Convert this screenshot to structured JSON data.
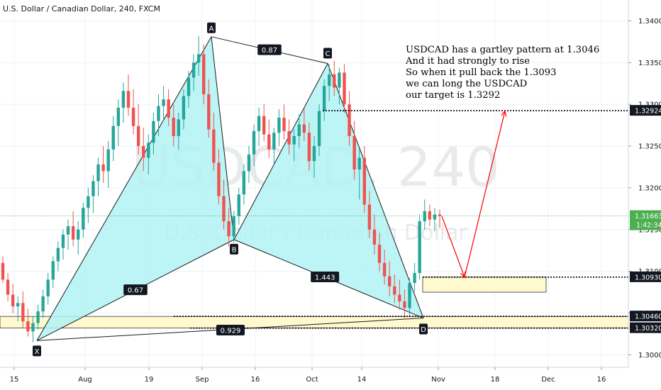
{
  "header": {
    "title": "U.S. Dollar / Canadian Dollar, 240, FXCM"
  },
  "watermark": {
    "symbol": "USDCAD, 240",
    "description": "U.S. Dollar / Canadian Dollar"
  },
  "annotation": {
    "lines": [
      "USDCAD has a gartley pattern at 1.3046",
      "And it had strongly to rise",
      "So when it pull back the 1.3093",
      "we can long the USDCAD",
      "our target is 1.3292"
    ]
  },
  "colors": {
    "pattern_fill": "#b2f2f5",
    "zone_fill": "#fff9d0",
    "candle_up": "#26a69a",
    "candle_down": "#ef5350",
    "arrow": "#ff0000",
    "current_price_line": "#4caf50"
  },
  "chart_data": {
    "type": "candlestick",
    "symbol": "USDCAD",
    "timeframe": "240",
    "x_tick_labels": [
      "15",
      "Aug",
      "19",
      "Sep",
      "16",
      "Oct",
      "14",
      "Nov",
      "18",
      "Dec",
      "16"
    ],
    "y_tick_labels": [
      "1.30000",
      "1.30500",
      "1.31000",
      "1.31500",
      "1.32000",
      "1.32500",
      "1.33000",
      "1.33500",
      "1.34000"
    ],
    "ylim": [
      1.2985,
      1.3425
    ],
    "y_ticks": [
      1.3,
      1.305,
      1.31,
      1.315,
      1.32,
      1.325,
      1.33,
      1.335,
      1.34
    ],
    "current_price": {
      "value": 1.31663,
      "label": "1.31663",
      "countdown": "1:42:34"
    },
    "price_levels": [
      {
        "value": 1.32924,
        "label": "1.32924"
      },
      {
        "value": 1.3093,
        "label": "1.30930"
      },
      {
        "value": 1.3046,
        "label": "1.30460"
      },
      {
        "value": 1.3032,
        "label": "1.30320"
      }
    ],
    "harmonic_points": [
      {
        "label": "X",
        "price": 1.3017
      },
      {
        "label": "A",
        "price": 1.3381
      },
      {
        "label": "B",
        "price": 1.3138
      },
      {
        "label": "C",
        "price": 1.3349
      },
      {
        "label": "D",
        "price": 1.3044
      }
    ],
    "ratios": [
      {
        "label": "0.67",
        "between": "X-B"
      },
      {
        "label": "0.87",
        "between": "A-C"
      },
      {
        "label": "1.443",
        "between": "B-D"
      },
      {
        "label": "0.929",
        "between": "X-D"
      }
    ],
    "zones": [
      {
        "name": "entry-zone",
        "from": 1.3075,
        "to": 1.3093
      },
      {
        "name": "support-zone",
        "from": 1.3032,
        "to": 1.3046
      }
    ],
    "projection": [
      {
        "price": 1.3166
      },
      {
        "price": 1.3093
      },
      {
        "price": 1.3292
      }
    ],
    "candles": [
      [
        1.311,
        1.3118,
        1.3086,
        1.309
      ],
      [
        1.309,
        1.3098,
        1.3064,
        1.3072
      ],
      [
        1.3072,
        1.3085,
        1.305,
        1.3058
      ],
      [
        1.3058,
        1.307,
        1.304,
        1.3062
      ],
      [
        1.3062,
        1.3076,
        1.3032,
        1.304
      ],
      [
        1.304,
        1.3055,
        1.3022,
        1.3028
      ],
      [
        1.3028,
        1.3046,
        1.3015,
        1.3038
      ],
      [
        1.3038,
        1.306,
        1.303,
        1.3052
      ],
      [
        1.3052,
        1.3078,
        1.3044,
        1.307
      ],
      [
        1.307,
        1.3098,
        1.306,
        1.309
      ],
      [
        1.309,
        1.3118,
        1.308,
        1.3112
      ],
      [
        1.3112,
        1.3136,
        1.31,
        1.3128
      ],
      [
        1.3128,
        1.315,
        1.3114,
        1.3144
      ],
      [
        1.3144,
        1.3162,
        1.3126,
        1.3154
      ],
      [
        1.3154,
        1.3172,
        1.313,
        1.3138
      ],
      [
        1.3138,
        1.316,
        1.312,
        1.315
      ],
      [
        1.315,
        1.3182,
        1.314,
        1.3176
      ],
      [
        1.3176,
        1.32,
        1.3158,
        1.319
      ],
      [
        1.319,
        1.3215,
        1.317,
        1.3208
      ],
      [
        1.3208,
        1.3236,
        1.319,
        1.3228
      ],
      [
        1.3228,
        1.325,
        1.3206,
        1.322
      ],
      [
        1.322,
        1.3256,
        1.32,
        1.3246
      ],
      [
        1.3246,
        1.3286,
        1.3232,
        1.3274
      ],
      [
        1.3274,
        1.3306,
        1.325,
        1.3296
      ],
      [
        1.3296,
        1.3326,
        1.3278,
        1.3316
      ],
      [
        1.3316,
        1.3336,
        1.3286,
        1.3296
      ],
      [
        1.3296,
        1.3318,
        1.3264,
        1.3274
      ],
      [
        1.3274,
        1.33,
        1.324,
        1.325
      ],
      [
        1.325,
        1.3272,
        1.322,
        1.3236
      ],
      [
        1.3236,
        1.3264,
        1.3216,
        1.3254
      ],
      [
        1.3254,
        1.329,
        1.324,
        1.328
      ],
      [
        1.328,
        1.3312,
        1.3262,
        1.3298
      ],
      [
        1.3298,
        1.3322,
        1.328,
        1.3306
      ],
      [
        1.3306,
        1.3318,
        1.3274,
        1.3284
      ],
      [
        1.3284,
        1.33,
        1.325,
        1.3262
      ],
      [
        1.3262,
        1.329,
        1.3246,
        1.3282
      ],
      [
        1.3282,
        1.3318,
        1.327,
        1.331
      ],
      [
        1.331,
        1.334,
        1.3296,
        1.3332
      ],
      [
        1.3332,
        1.336,
        1.3316,
        1.335
      ],
      [
        1.335,
        1.3382,
        1.3334,
        1.336
      ],
      [
        1.336,
        1.3372,
        1.33,
        1.3312
      ],
      [
        1.3312,
        1.333,
        1.326,
        1.327
      ],
      [
        1.327,
        1.329,
        1.322,
        1.323
      ],
      [
        1.323,
        1.3246,
        1.318,
        1.319
      ],
      [
        1.319,
        1.321,
        1.315,
        1.316
      ],
      [
        1.316,
        1.3176,
        1.313,
        1.3142
      ],
      [
        1.3142,
        1.3172,
        1.3134,
        1.3166
      ],
      [
        1.3166,
        1.32,
        1.3156,
        1.3192
      ],
      [
        1.3192,
        1.3228,
        1.318,
        1.322
      ],
      [
        1.322,
        1.325,
        1.3206,
        1.324
      ],
      [
        1.324,
        1.3276,
        1.3226,
        1.3268
      ],
      [
        1.3268,
        1.3296,
        1.325,
        1.3286
      ],
      [
        1.3286,
        1.33,
        1.3256,
        1.3264
      ],
      [
        1.3264,
        1.3282,
        1.3236,
        1.3246
      ],
      [
        1.3246,
        1.3272,
        1.3228,
        1.3266
      ],
      [
        1.3266,
        1.3294,
        1.325,
        1.3284
      ],
      [
        1.3284,
        1.33,
        1.3258,
        1.3268
      ],
      [
        1.3268,
        1.3282,
        1.324,
        1.3252
      ],
      [
        1.3252,
        1.327,
        1.3232,
        1.3262
      ],
      [
        1.3262,
        1.3288,
        1.3248,
        1.3276
      ],
      [
        1.3276,
        1.3296,
        1.3256,
        1.3266
      ],
      [
        1.3266,
        1.3278,
        1.322,
        1.3232
      ],
      [
        1.3232,
        1.3262,
        1.3212,
        1.325
      ],
      [
        1.325,
        1.33,
        1.3238,
        1.3292
      ],
      [
        1.3292,
        1.333,
        1.328,
        1.3322
      ],
      [
        1.3322,
        1.3348,
        1.3304,
        1.3336
      ],
      [
        1.3336,
        1.3352,
        1.331,
        1.332
      ],
      [
        1.332,
        1.3344,
        1.33,
        1.3338
      ],
      [
        1.3338,
        1.3348,
        1.329,
        1.33
      ],
      [
        1.33,
        1.3316,
        1.325,
        1.3262
      ],
      [
        1.3262,
        1.328,
        1.321,
        1.3222
      ],
      [
        1.3222,
        1.3246,
        1.3186,
        1.3236
      ],
      [
        1.3236,
        1.325,
        1.317,
        1.318
      ],
      [
        1.318,
        1.3196,
        1.314,
        1.315
      ],
      [
        1.315,
        1.3168,
        1.312,
        1.3132
      ],
      [
        1.3132,
        1.3146,
        1.31,
        1.311
      ],
      [
        1.311,
        1.3126,
        1.3084,
        1.3094
      ],
      [
        1.3094,
        1.3112,
        1.307,
        1.3082
      ],
      [
        1.3082,
        1.3096,
        1.3062,
        1.3072
      ],
      [
        1.3072,
        1.309,
        1.3054,
        1.3064
      ],
      [
        1.3064,
        1.3078,
        1.3044,
        1.3056
      ],
      [
        1.3056,
        1.3092,
        1.3046,
        1.3086
      ],
      [
        1.3086,
        1.311,
        1.3076,
        1.3098
      ],
      [
        1.3098,
        1.3168,
        1.309,
        1.316
      ],
      [
        1.316,
        1.3186,
        1.315,
        1.3172
      ],
      [
        1.3172,
        1.318,
        1.3154,
        1.3162
      ],
      [
        1.3162,
        1.3176,
        1.3148,
        1.3168
      ],
      [
        1.3168,
        1.3174,
        1.3152,
        1.3166
      ]
    ]
  }
}
